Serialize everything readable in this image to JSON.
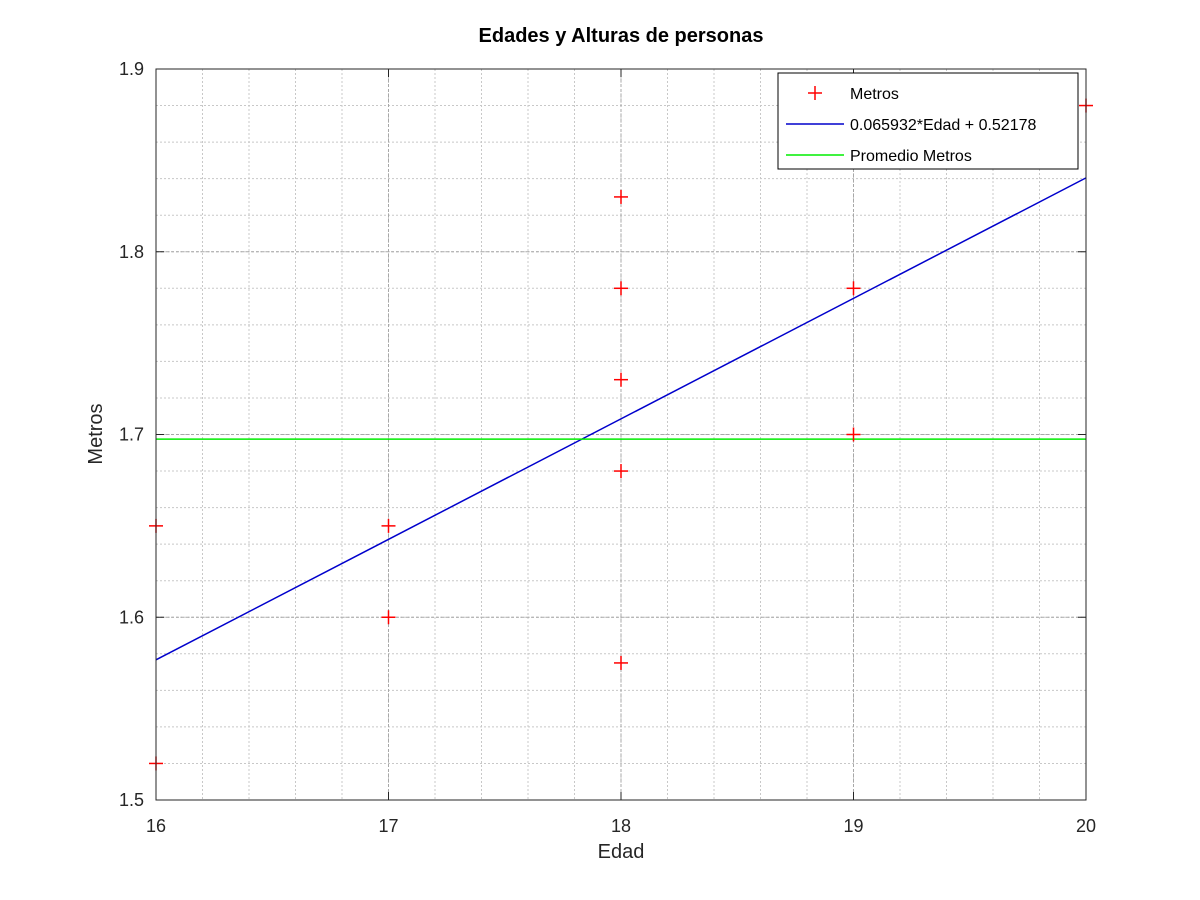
{
  "chart_data": {
    "type": "scatter",
    "title": "Edades y Alturas de personas",
    "xlabel": "Edad",
    "ylabel": "Metros",
    "xlim": [
      16,
      20
    ],
    "ylim": [
      1.5,
      1.9
    ],
    "xticks": [
      "16",
      "17",
      "18",
      "19",
      "20"
    ],
    "yticks": [
      "1.5",
      "1.6",
      "1.7",
      "1.8",
      "1.9"
    ],
    "grid": true,
    "minor_grid": true,
    "legend_position": "top-right",
    "series": [
      {
        "name": "Metros",
        "kind": "scatter",
        "marker": "+",
        "color": "#ff0000",
        "x": [
          16,
          16,
          17,
          17,
          18,
          18,
          18,
          18,
          18,
          19,
          19,
          20
        ],
        "y": [
          1.52,
          1.65,
          1.65,
          1.6,
          1.83,
          1.78,
          1.73,
          1.68,
          1.575,
          1.78,
          1.7,
          1.88
        ]
      },
      {
        "name": "0.065932*Edad + 0.52178",
        "kind": "line",
        "color": "#0000cc",
        "slope": 0.065932,
        "intercept": 0.52178
      },
      {
        "name": "Promedio Metros",
        "kind": "hline",
        "color": "#00ee00",
        "y": 1.6975
      }
    ]
  }
}
